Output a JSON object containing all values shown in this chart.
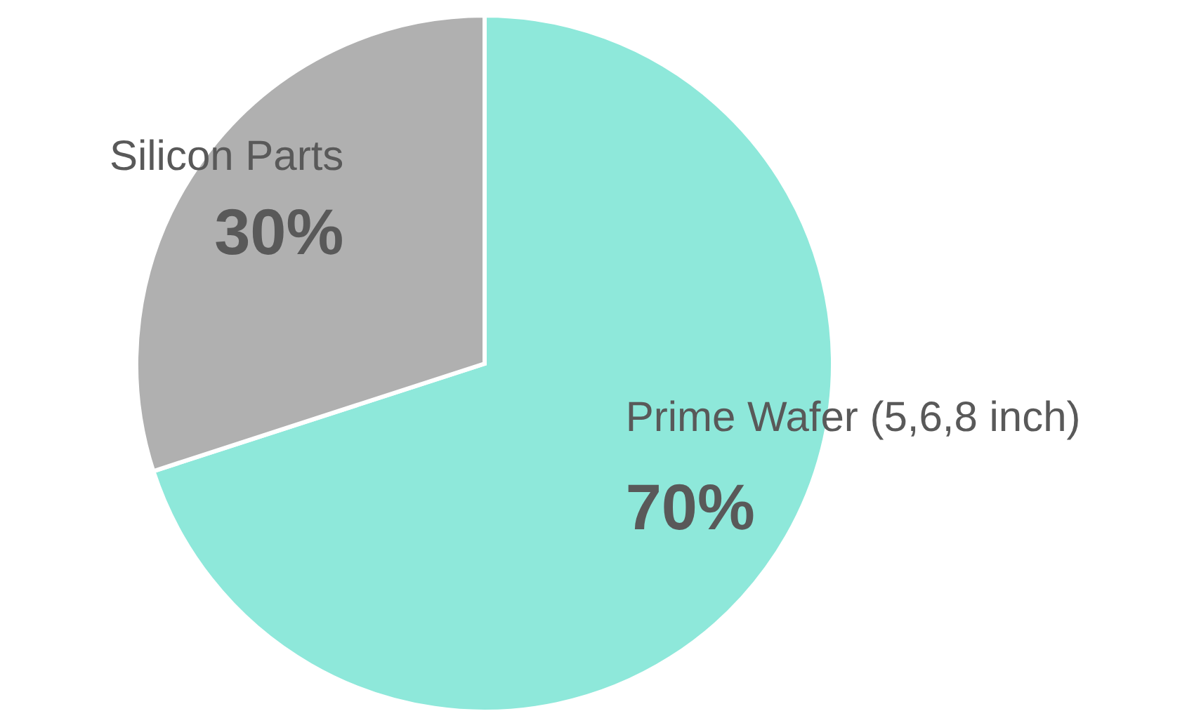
{
  "chart_data": {
    "type": "pie",
    "categories": [
      "Prime Wafer (5,6,8 inch)",
      "Silicon Parts"
    ],
    "values": [
      70,
      30
    ],
    "colors": [
      "#8ee8da",
      "#b0b0b0"
    ],
    "value_labels": [
      "70%",
      "30%"
    ],
    "legend": false
  }
}
